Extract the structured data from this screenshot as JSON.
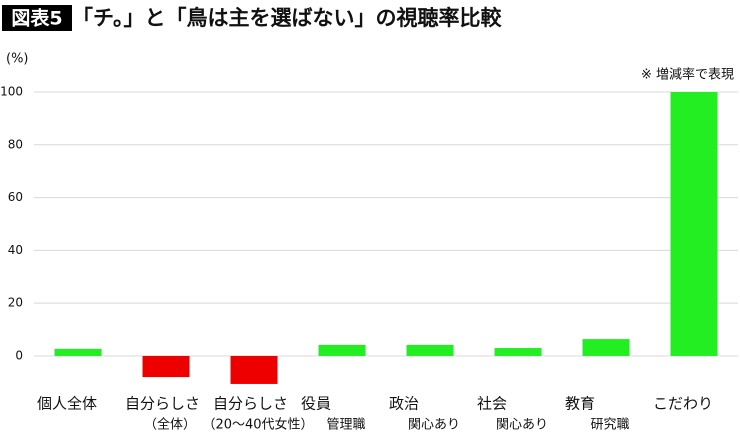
{
  "chart_data": {
    "type": "bar",
    "figure_label": "図表5",
    "title": "「チ。」と「鳥は主を選ばない」の視聴率比較",
    "y_unit": "(%)",
    "note": "※ 増減率で表現",
    "categories": [
      [
        "個人全体"
      ],
      [
        "自分らしさ",
        "（全体）"
      ],
      [
        "自分らしさ",
        "（20〜40代女性）"
      ],
      [
        "役員",
        "管理職"
      ],
      [
        "政治",
        "関心あり"
      ],
      [
        "社会",
        "関心あり"
      ],
      [
        "教育",
        "研究職"
      ],
      [
        "こだわり"
      ]
    ],
    "values": [
      2.7,
      -8.0,
      -10.6,
      4.2,
      4.2,
      3.0,
      6.4,
      100
    ],
    "positive_color": "#22ee22",
    "negative_color": "#ee0000",
    "ylim": [
      -11,
      100
    ],
    "yticks": [
      0,
      20,
      40,
      60,
      80,
      100
    ],
    "grid": true
  }
}
